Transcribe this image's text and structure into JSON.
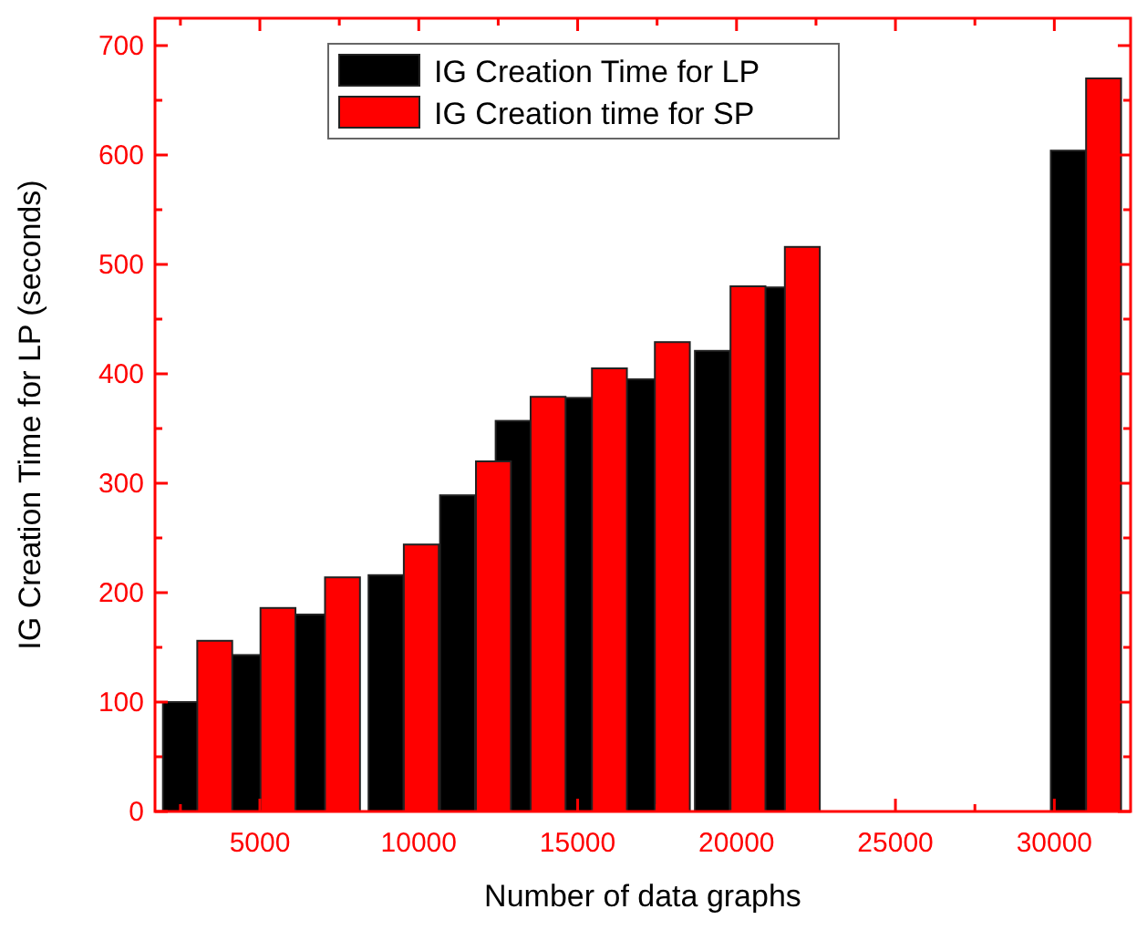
{
  "chart_data": {
    "type": "bar",
    "xlabel": "Number of data graphs",
    "ylabel": "IG Creation Time for LP (seconds)",
    "xlim": [
      1700,
      32400
    ],
    "xticks": [
      {
        "value": 2500,
        "label": null
      },
      5000,
      {
        "value": 7500,
        "label": null
      },
      10000,
      {
        "value": 12500,
        "label": null
      },
      15000,
      {
        "value": 17500,
        "label": null
      },
      20000,
      {
        "value": 22500,
        "label": null
      },
      25000,
      {
        "value": 27500,
        "label": null
      },
      30000
    ],
    "ylim": [
      0,
      725
    ],
    "yticks": [
      0,
      {
        "value": 50,
        "label": null
      },
      100,
      {
        "value": 150,
        "label": null
      },
      200,
      {
        "value": 250,
        "label": null
      },
      300,
      {
        "value": 350,
        "label": null
      },
      400,
      {
        "value": 450,
        "label": null
      },
      500,
      {
        "value": 550,
        "label": null
      },
      600,
      {
        "value": 650,
        "label": null
      },
      700
    ],
    "series": [
      {
        "name": "IG Creation Time for LP",
        "color": "#000000",
        "x": [
          2500,
          4570,
          6590,
          8970,
          11220,
          12970,
          15030,
          16980,
          19240,
          21200,
          30440
        ],
        "values": [
          100,
          143,
          180,
          216,
          289,
          357,
          378,
          395,
          421,
          479,
          604
        ]
      },
      {
        "name": "IG Creation time for SP",
        "color": "#ff0000",
        "x": [
          3580,
          5570,
          7600,
          10080,
          12350,
          14070,
          16000,
          17980,
          20360,
          22070,
          31550
        ],
        "values": [
          156,
          186,
          214,
          244,
          320,
          379,
          405,
          429,
          480,
          516,
          670
        ]
      }
    ],
    "legend": "top",
    "grid": false
  }
}
